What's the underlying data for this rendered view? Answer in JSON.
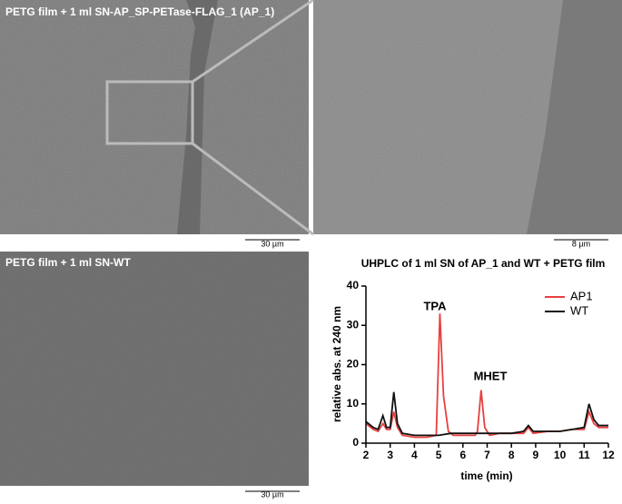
{
  "panels": {
    "sem_top_label": "PETG film + 1 ml SN-AP_SP-PETase-FLAG_1 (AP_1)",
    "sem_bottom_label": "PETG film + 1 ml SN-WT",
    "scale_bars": [
      "30 µm",
      "8 µm",
      "30 µm"
    ]
  },
  "chart_data": {
    "type": "line",
    "title": "UHPLC of 1 ml SN of AP_1 and WT + PETG film",
    "x_label": "time (min)",
    "y_label": "relative abs. at 240 nm",
    "xlim": [
      2,
      12
    ],
    "xticks": [
      2,
      3,
      4,
      5,
      6,
      7,
      8,
      9,
      10,
      11,
      12
    ],
    "ylim": [
      0,
      40
    ],
    "yticks": [
      0,
      10,
      20,
      30,
      40
    ],
    "grid": false,
    "legend": "upper right",
    "annotations": [
      "TPA",
      "MHET"
    ],
    "series": [
      {
        "name": "AP1",
        "color": "#e8403f",
        "x": [
          2,
          2.3,
          2.5,
          2.7,
          2.85,
          3.0,
          3.15,
          3.3,
          3.5,
          4,
          4.5,
          4.9,
          5.05,
          5.2,
          5.4,
          5.6,
          6,
          6.5,
          6.6,
          6.75,
          6.9,
          7.1,
          7.5,
          8,
          8.5,
          8.7,
          8.9,
          9.5,
          10,
          10.5,
          11,
          11.2,
          11.4,
          11.6,
          12
        ],
        "values": [
          5,
          3.5,
          3,
          5,
          3.5,
          3.5,
          8,
          4,
          2,
          1.5,
          1.5,
          2,
          33,
          12,
          3,
          2,
          2,
          2,
          3,
          13.5,
          4,
          2,
          2.5,
          2.5,
          2.5,
          4,
          2.5,
          3,
          3,
          3.5,
          3.5,
          8,
          5,
          4,
          4
        ]
      },
      {
        "name": "WT",
        "color": "#111111",
        "x": [
          2,
          2.3,
          2.5,
          2.7,
          2.85,
          3.0,
          3.15,
          3.3,
          3.5,
          4,
          4.5,
          5,
          5.5,
          6,
          6.5,
          7,
          7.5,
          8,
          8.5,
          8.7,
          8.9,
          9.5,
          10,
          10.5,
          11,
          11.2,
          11.4,
          11.6,
          12
        ],
        "values": [
          5.5,
          4,
          3.5,
          7,
          4,
          4,
          13,
          5,
          2.5,
          2,
          2,
          2,
          2.5,
          2.5,
          2.5,
          2.5,
          2.5,
          2.5,
          3,
          4.5,
          3,
          3,
          3,
          3.5,
          4,
          10,
          6,
          4.5,
          4.5
        ]
      }
    ]
  }
}
